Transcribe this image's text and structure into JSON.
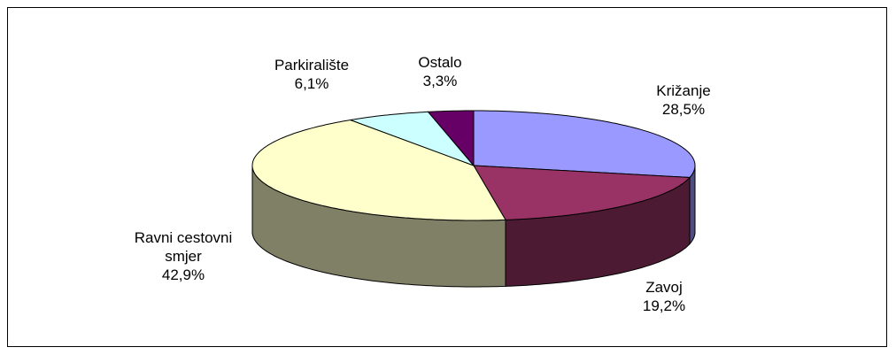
{
  "chart_data": {
    "type": "pie3d",
    "categories": [
      "Križanje",
      "Zavoj",
      "Ravni cestovni smjer",
      "Parkiralište",
      "Ostalo"
    ],
    "values": [
      28.5,
      19.2,
      42.9,
      6.1,
      3.3
    ],
    "value_labels": [
      "28,5%",
      "19,2%",
      "42,9%",
      "6,1%",
      "3,3%"
    ],
    "colors": [
      "#9999ff",
      "#993366",
      "#ffffcc",
      "#ccffff",
      "#660066"
    ]
  }
}
